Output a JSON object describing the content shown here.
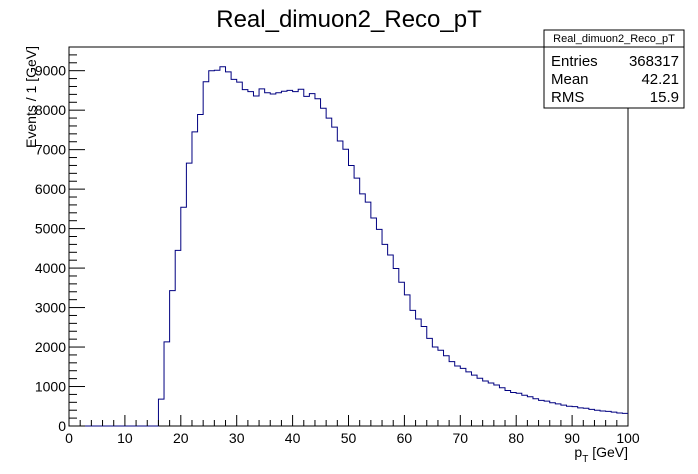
{
  "chart_data": {
    "type": "histogram",
    "title": "Real_dimuon2_Reco_pT",
    "xlabel": {
      "main": "p",
      "sub": "T",
      "unit": " [GeV]"
    },
    "ylabel": "Events / 1 [GeV]",
    "xlim": [
      0,
      100
    ],
    "ylim": [
      0,
      9600
    ],
    "bin_width": 1,
    "x_ticks": [
      0,
      10,
      20,
      30,
      40,
      50,
      60,
      70,
      80,
      90,
      100
    ],
    "x_tick_labels": [
      "0",
      "10",
      "20",
      "30",
      "40",
      "50",
      "60",
      "70",
      "80",
      "90",
      "100"
    ],
    "y_ticks": [
      0,
      1000,
      2000,
      3000,
      4000,
      5000,
      6000,
      7000,
      8000,
      9000
    ],
    "y_tick_labels": [
      "0",
      "1000",
      "2000",
      "3000",
      "4000",
      "5000",
      "6000",
      "7000",
      "8000",
      "9000"
    ],
    "line_color": "#000080",
    "grid": false,
    "values": [
      0,
      0,
      0,
      0,
      0,
      0,
      0,
      0,
      0,
      0,
      0,
      0,
      0,
      0,
      0,
      0,
      680,
      2130,
      3430,
      4450,
      5540,
      6660,
      7450,
      7890,
      8720,
      9000,
      9010,
      9100,
      8970,
      8780,
      8710,
      8520,
      8470,
      8360,
      8540,
      8440,
      8410,
      8440,
      8480,
      8500,
      8470,
      8530,
      8350,
      8420,
      8290,
      8050,
      7800,
      7570,
      7220,
      7010,
      6600,
      6280,
      5880,
      5670,
      5270,
      4980,
      4600,
      4330,
      3990,
      3640,
      3320,
      2930,
      2710,
      2520,
      2220,
      2000,
      1920,
      1780,
      1630,
      1520,
      1460,
      1370,
      1290,
      1210,
      1140,
      1090,
      1040,
      970,
      900,
      850,
      830,
      780,
      740,
      690,
      650,
      630,
      590,
      560,
      530,
      500,
      490,
      460,
      450,
      420,
      400,
      380,
      370,
      350,
      330,
      320
    ]
  },
  "stats_box": {
    "title": "Real_dimuon2_Reco_pT",
    "rows": [
      {
        "label": "Entries",
        "value": "368317"
      },
      {
        "label": "Mean",
        "value": "42.21"
      },
      {
        "label": "RMS",
        "value": "15.9"
      }
    ]
  }
}
